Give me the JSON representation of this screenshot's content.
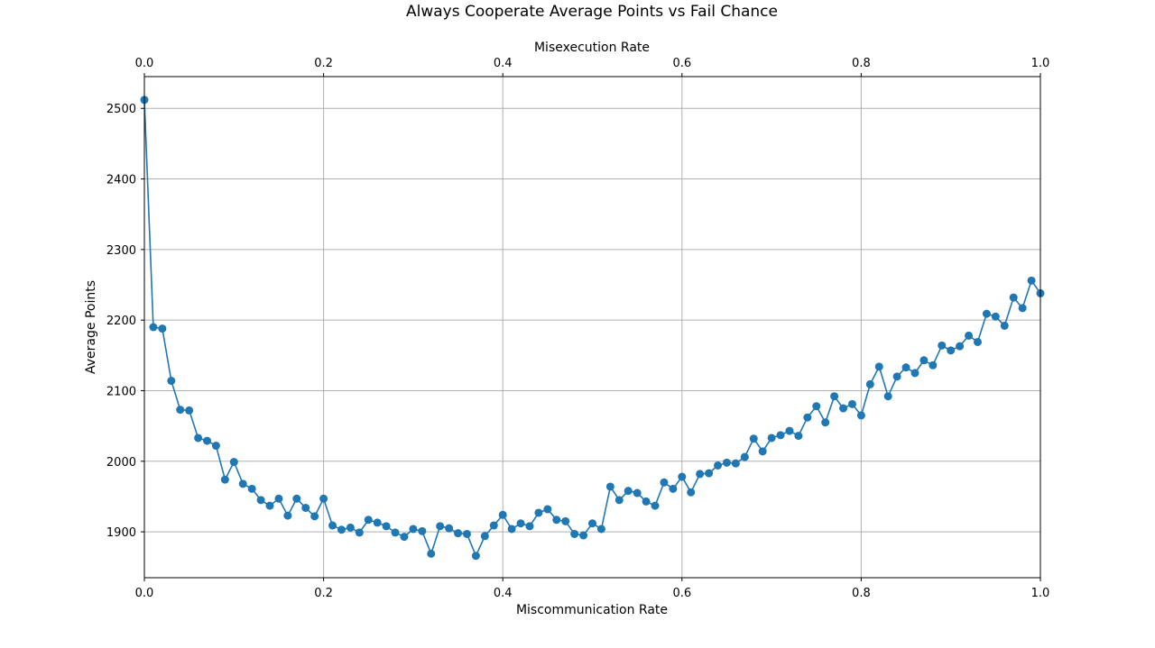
{
  "chart_data": {
    "type": "line",
    "title": "Always Cooperate Average Points vs Fail Chance",
    "xlabel": "Miscommunication Rate",
    "ylabel": "Average Points",
    "x2label": "Misexecution Rate",
    "xlim": [
      0,
      1
    ],
    "ylim": [
      1835,
      2545
    ],
    "x_ticks": [
      0,
      0.2,
      0.4,
      0.6,
      0.8,
      1
    ],
    "x_tick_labels": [
      "0.0",
      "0.2",
      "0.4",
      "0.6",
      "0.8",
      "1.0"
    ],
    "x2_tick_labels": [
      "0.0",
      "0.2",
      "0.4",
      "0.6",
      "0.8",
      "1.0"
    ],
    "y_ticks": [
      1900,
      2000,
      2100,
      2200,
      2300,
      2400,
      2500
    ],
    "y_tick_labels": [
      "1900",
      "2000",
      "2100",
      "2200",
      "2300",
      "2400",
      "2500"
    ],
    "grid": true,
    "marker": "circle",
    "color": "#1f77b4",
    "series": [
      {
        "x": [
          0,
          0.01,
          0.02,
          0.03,
          0.04,
          0.05,
          0.06,
          0.07,
          0.08,
          0.09,
          0.1,
          0.11,
          0.12,
          0.13,
          0.14,
          0.15,
          0.16,
          0.17,
          0.18,
          0.19,
          0.2,
          0.21,
          0.22,
          0.23,
          0.24,
          0.25,
          0.26,
          0.27,
          0.28,
          0.29,
          0.3,
          0.31,
          0.32,
          0.33,
          0.34,
          0.35,
          0.36,
          0.37,
          0.38,
          0.39,
          0.4,
          0.41,
          0.42,
          0.43,
          0.44,
          0.45,
          0.46,
          0.47,
          0.48,
          0.49,
          0.5,
          0.51,
          0.52,
          0.53,
          0.54,
          0.55,
          0.56,
          0.57,
          0.58,
          0.59,
          0.6,
          0.61,
          0.62,
          0.63,
          0.64,
          0.65,
          0.66,
          0.67,
          0.68,
          0.69,
          0.7,
          0.71,
          0.72,
          0.73,
          0.74,
          0.75,
          0.76,
          0.77,
          0.78,
          0.79,
          0.8,
          0.81,
          0.82,
          0.83,
          0.84,
          0.85,
          0.86,
          0.87,
          0.88,
          0.89,
          0.9,
          0.91,
          0.92,
          0.93,
          0.94,
          0.95,
          0.96,
          0.97,
          0.98,
          0.99,
          1.0
        ],
        "values": [
          2512,
          2190,
          2188,
          2114,
          2073,
          2072,
          2033,
          2029,
          2022,
          1974,
          1999,
          1968,
          1961,
          1945,
          1937,
          1947,
          1923,
          1947,
          1934,
          1922,
          1947,
          1909,
          1903,
          1906,
          1899,
          1917,
          1913,
          1908,
          1899,
          1893,
          1904,
          1901,
          1869,
          1908,
          1905,
          1898,
          1897,
          1866,
          1894,
          1909,
          1924,
          1904,
          1912,
          1908,
          1927,
          1932,
          1917,
          1915,
          1897,
          1895,
          1912,
          1904,
          1964,
          1945,
          1958,
          1955,
          1943,
          1937,
          1970,
          1961,
          1978,
          1956,
          1982,
          1983,
          1994,
          1998,
          1997,
          2006,
          2032,
          2014,
          2033,
          2037,
          2043,
          2036,
          2062,
          2078,
          2055,
          2092,
          2075,
          2081,
          2065,
          2109,
          2134,
          2092,
          2120,
          2133,
          2125,
          2143,
          2136,
          2164,
          2157,
          2163,
          2178,
          2169,
          2209,
          2205,
          2192,
          2232,
          2217,
          2256,
          2238
        ]
      }
    ]
  }
}
